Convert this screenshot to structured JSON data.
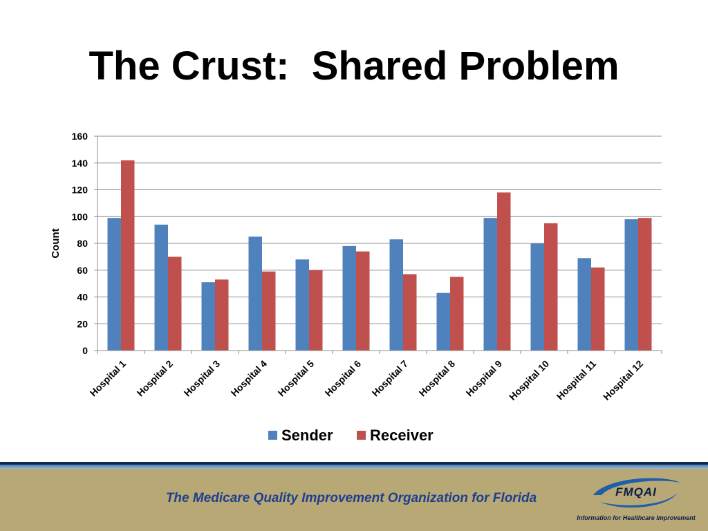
{
  "slide": {
    "title": "The Crust:  Shared Problem"
  },
  "chart_data": {
    "type": "bar",
    "title": "",
    "xlabel": "",
    "ylabel": "Count",
    "ylim": [
      0,
      160
    ],
    "yticks": [
      0,
      20,
      40,
      60,
      80,
      100,
      120,
      140,
      160
    ],
    "grid": true,
    "legend_position": "bottom",
    "categories": [
      "Hospital 1",
      "Hospital 2",
      "Hospital 3",
      "Hospital 4",
      "Hospital 5",
      "Hospital 6",
      "Hospital 7",
      "Hospital 8",
      "Hospital 9",
      "Hospital 10",
      "Hospital 11",
      "Hospital 12"
    ],
    "series": [
      {
        "name": "Sender",
        "color": "#4f81bd",
        "values": [
          99,
          94,
          51,
          85,
          68,
          78,
          83,
          43,
          99,
          80,
          69,
          98
        ]
      },
      {
        "name": "Receiver",
        "color": "#c0504d",
        "values": [
          142,
          70,
          53,
          59,
          60,
          74,
          57,
          55,
          118,
          95,
          62,
          99
        ]
      }
    ]
  },
  "footer": {
    "tagline": "The Medicare Quality Improvement Organization for Florida",
    "logo_name": "FMQAI",
    "logo_subtitle": "Information for Healthcare Improvement",
    "band_color": "#b8a875",
    "text_color": "#1f3f8f"
  }
}
